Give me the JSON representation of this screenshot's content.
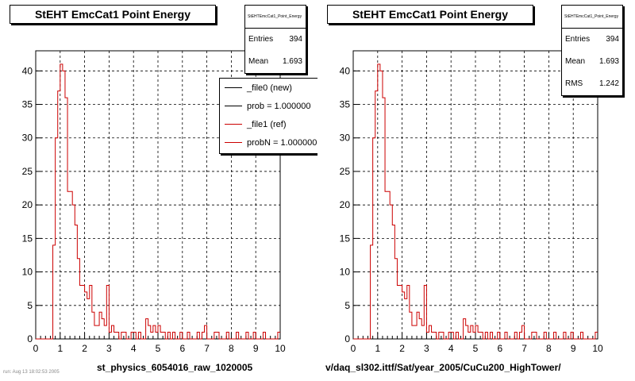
{
  "chart_data": [
    {
      "type": "line",
      "title": "StEHT EmcCat1 Point Energy",
      "xlabel": "st_physics_6054016_raw_1020005",
      "ylabel": "",
      "xlim": [
        0,
        10
      ],
      "ylim": [
        0,
        43
      ],
      "xticks": [
        "0",
        "1",
        "2",
        "3",
        "4",
        "5",
        "6",
        "7",
        "8",
        "9",
        "10"
      ],
      "yticks": [
        "0",
        "5",
        "10",
        "15",
        "20",
        "25",
        "30",
        "35",
        "40"
      ],
      "grid": true,
      "bin_width": 0.1,
      "stats": {
        "name": "StEHTEmcCat1_Point_Energy",
        "entries_label": "Entries",
        "entries": "394",
        "mean_label": "Mean",
        "mean": "1.693"
      },
      "legend": [
        "_file0 (new)",
        "prob = 1.000000",
        "_file1 (ref)",
        "probN = 1.000000"
      ],
      "legend_colors": [
        "#000000",
        "#000000",
        "#cc0000",
        "#cc0000"
      ],
      "series": [
        {
          "name": "_file1 (ref)",
          "color": "#cc0000",
          "x": [
            0.7,
            0.8,
            0.9,
            1.0,
            1.1,
            1.2,
            1.3,
            1.4,
            1.5,
            1.6,
            1.7,
            1.8,
            1.9,
            2.0,
            2.1,
            2.2,
            2.3,
            2.4,
            2.5,
            2.6,
            2.7,
            2.8,
            2.9,
            3.0,
            3.1,
            3.2,
            3.3,
            3.5,
            3.6,
            3.9,
            4.0,
            4.2,
            4.5,
            4.6,
            4.7,
            4.8,
            4.9,
            5.0,
            5.1,
            5.2,
            5.4,
            5.6,
            5.9,
            6.2,
            6.6,
            6.8,
            6.9,
            7.3,
            7.4,
            7.8,
            8.2,
            8.6,
            8.9,
            9.3,
            9.9
          ],
          "values": [
            14,
            30,
            37,
            41,
            40,
            36,
            22,
            22,
            20,
            17,
            12,
            8,
            8,
            7,
            6,
            8,
            4,
            2,
            2,
            4,
            3,
            2,
            8,
            1,
            2,
            1,
            1,
            1,
            1,
            1,
            1,
            1,
            3,
            2,
            1,
            2,
            1,
            2,
            1,
            1,
            1,
            1,
            1,
            1,
            1,
            1,
            2,
            1,
            1,
            1,
            1,
            1,
            1,
            1,
            1
          ]
        }
      ]
    },
    {
      "type": "line",
      "title": "StEHT EmcCat1 Point Energy",
      "xlabel": "v/daq_sl302.ittf/Sat/year_2005/CuCu200_HighTower/",
      "ylabel": "",
      "xlim": [
        0,
        10
      ],
      "ylim": [
        0,
        43
      ],
      "xticks": [
        "0",
        "1",
        "2",
        "3",
        "4",
        "5",
        "6",
        "7",
        "8",
        "9",
        "10"
      ],
      "yticks": [
        "0",
        "5",
        "10",
        "15",
        "20",
        "25",
        "30",
        "35",
        "40"
      ],
      "grid": true,
      "bin_width": 0.1,
      "stats": {
        "name": "StEHTEmcCat1_Point_Energy",
        "entries_label": "Entries",
        "entries": "394",
        "mean_label": "Mean",
        "mean": "1.693",
        "rms_label": "RMS",
        "rms": "1.242"
      },
      "series": [
        {
          "name": "_file1 (ref)",
          "color": "#cc0000",
          "x": [
            0.7,
            0.8,
            0.9,
            1.0,
            1.1,
            1.2,
            1.3,
            1.4,
            1.5,
            1.6,
            1.7,
            1.8,
            1.9,
            2.0,
            2.1,
            2.2,
            2.3,
            2.4,
            2.5,
            2.6,
            2.7,
            2.8,
            2.9,
            3.0,
            3.1,
            3.2,
            3.3,
            3.5,
            3.6,
            3.9,
            4.0,
            4.2,
            4.5,
            4.6,
            4.7,
            4.8,
            4.9,
            5.0,
            5.1,
            5.2,
            5.4,
            5.6,
            5.9,
            6.2,
            6.6,
            6.8,
            6.9,
            7.3,
            7.4,
            7.8,
            8.2,
            8.6,
            8.9,
            9.3,
            9.9
          ],
          "values": [
            14,
            30,
            37,
            41,
            40,
            36,
            22,
            22,
            20,
            17,
            12,
            8,
            8,
            7,
            6,
            8,
            4,
            2,
            2,
            4,
            3,
            2,
            8,
            1,
            2,
            1,
            1,
            1,
            1,
            1,
            1,
            1,
            3,
            2,
            1,
            2,
            1,
            2,
            1,
            1,
            1,
            1,
            1,
            1,
            1,
            1,
            2,
            1,
            1,
            1,
            1,
            1,
            1,
            1,
            1
          ]
        }
      ]
    }
  ],
  "footer": "run: Aug 13 18:02:53 2005"
}
